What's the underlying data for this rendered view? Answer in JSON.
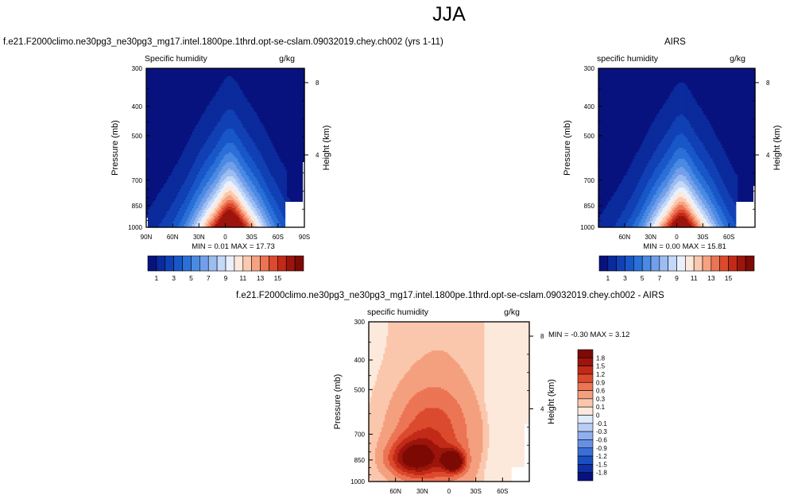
{
  "figure": {
    "season_title": "JJA"
  },
  "chart_data": [
    {
      "type": "heatmap",
      "title": "f.e21.F2000climo.ne30pg3_ne30pg3_mg17.intel.1800pe.1thrd.opt-se-cslam.09032019.chey.ch002 (yrs 1-11)",
      "subtitle_left": "Specific humidity",
      "subtitle_right": "g/kg",
      "xlabel": "",
      "ylabel": "Pressure (mb)",
      "ylabel_right": "Height (km)",
      "x_tick_labels": [
        "90N",
        "60N",
        "30N",
        "0",
        "30S",
        "60S",
        "90S"
      ],
      "x_tick_values": [
        90,
        60,
        30,
        0,
        -30,
        -60,
        -90
      ],
      "xlim": [
        90,
        -90
      ],
      "y_tick_labels": [
        "300",
        "400",
        "500",
        "700",
        "850",
        "1000"
      ],
      "y_tick_values": [
        300,
        400,
        500,
        700,
        850,
        1000
      ],
      "ylim": [
        1000,
        300
      ],
      "y_scale": "log",
      "y2_tick_labels": [
        "8",
        "4"
      ],
      "y2_tick_values": [
        8,
        4
      ],
      "stats": "MIN =   0.01  MAX =  17.73",
      "min": 0.01,
      "max": 17.73,
      "peak_lat": -5,
      "colorbar_labels": [
        "1",
        "3",
        "5",
        "7",
        "9",
        "11",
        "13",
        "15"
      ],
      "colorbar_levels": [
        1,
        2,
        3,
        4,
        5,
        6,
        7,
        8,
        9,
        10,
        11,
        12,
        13,
        14,
        15,
        16
      ]
    },
    {
      "type": "heatmap",
      "title": "AIRS",
      "subtitle_left": "specific humidity",
      "subtitle_right": "g/kg",
      "xlabel": "",
      "ylabel": "Pressure (mb)",
      "ylabel_right": "Height (km)",
      "x_tick_labels": [
        "60N",
        "30N",
        "0",
        "30S",
        "60S"
      ],
      "x_tick_values": [
        60,
        30,
        0,
        -30,
        -60
      ],
      "xlim": [
        90,
        -90
      ],
      "y_tick_labels": [
        "300",
        "400",
        "500",
        "700",
        "850",
        "1000"
      ],
      "y_tick_values": [
        300,
        400,
        500,
        700,
        850,
        1000
      ],
      "ylim": [
        1000,
        300
      ],
      "y_scale": "log",
      "y2_tick_labels": [
        "8",
        "4"
      ],
      "y2_tick_values": [
        8,
        4
      ],
      "stats": "MIN =   0.00  MAX =  15.81",
      "min": 0.0,
      "max": 15.81,
      "peak_lat": -5,
      "colorbar_labels": [
        "1",
        "3",
        "5",
        "7",
        "9",
        "11",
        "13",
        "15"
      ],
      "colorbar_levels": [
        1,
        2,
        3,
        4,
        5,
        6,
        7,
        8,
        9,
        10,
        11,
        12,
        13,
        14,
        15,
        16
      ]
    },
    {
      "type": "heatmap",
      "title": "f.e21.F2000climo.ne30pg3_ne30pg3_mg17.intel.1800pe.1thrd.opt-se-cslam.09032019.chey.ch002 - AIRS",
      "subtitle_left": "specific humidity",
      "subtitle_right": "g/kg",
      "xlabel": "",
      "ylabel": "Pressure (mb)",
      "ylabel_right": "Height (km)",
      "x_tick_labels": [
        "60N",
        "30N",
        "0",
        "30S",
        "60S"
      ],
      "x_tick_values": [
        60,
        30,
        0,
        -30,
        -60
      ],
      "xlim": [
        90,
        -90
      ],
      "y_tick_labels": [
        "300",
        "400",
        "500",
        "700",
        "850",
        "1000"
      ],
      "y_tick_values": [
        300,
        400,
        500,
        700,
        850,
        1000
      ],
      "ylim": [
        1000,
        300
      ],
      "y_scale": "log",
      "y2_tick_labels": [
        "8",
        "4"
      ],
      "y2_tick_values": [
        8,
        4
      ],
      "stats": "MIN = -0.30  MAX =   3.12",
      "min": -0.3,
      "max": 3.12,
      "colorbar_labels": [
        "1.8",
        "1.5",
        "1.2",
        "0.9",
        "0.6",
        "0.3",
        "0.1",
        "0",
        "-0.1",
        "-0.3",
        "-0.6",
        "-0.9",
        "-1.2",
        "-1.5",
        "-1.8"
      ],
      "colorbar_levels": [
        1.8,
        1.5,
        1.2,
        0.9,
        0.6,
        0.3,
        0.1,
        0,
        -0.1,
        -0.3,
        -0.6,
        -0.9,
        -1.2,
        -1.5,
        -1.8
      ]
    }
  ],
  "colors": {
    "absolute_palette": [
      "#08127e",
      "#0b2a9c",
      "#1040b4",
      "#1857c8",
      "#2b6fd8",
      "#4b8ae3",
      "#739fea",
      "#9cbdf1",
      "#c4d8f8",
      "#eaf1fd",
      "#fde8dc",
      "#fbc9b0",
      "#f6a281",
      "#ec7353",
      "#dc4a2e",
      "#c22a18",
      "#9c150c",
      "#7c0a05"
    ],
    "difference_palette": [
      "#08127e",
      "#0f2fa5",
      "#1a4fc4",
      "#3b6fd8",
      "#6690e6",
      "#8fb0ee",
      "#b8cdf4",
      "#deebfb",
      "#fde8dc",
      "#fac7ad",
      "#f4a07e",
      "#eb7554",
      "#dc4a2e",
      "#c22a18",
      "#9c150c",
      "#7c0a05"
    ],
    "missing": "#ffffff"
  }
}
